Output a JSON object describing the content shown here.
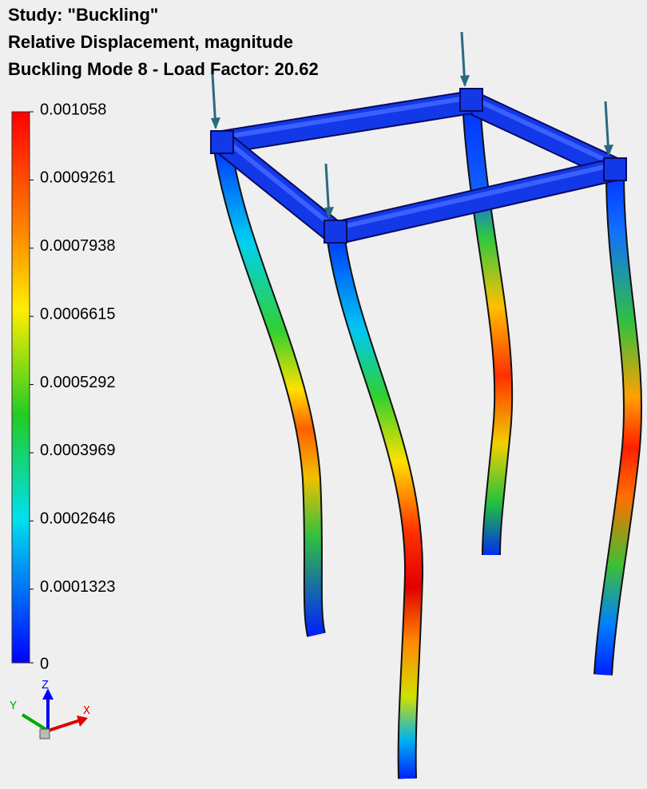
{
  "header": {
    "study": "Study: \"Buckling\"",
    "result": "Relative Displacement, magnitude",
    "mode": "Buckling Mode 8 - Load Factor: 20.62"
  },
  "legend": {
    "labels": [
      "0.001058",
      "0.0009261",
      "0.0007938",
      "0.0006615",
      "0.0005292",
      "0.0003969",
      "0.0002646",
      "0.0001323",
      "0"
    ]
  },
  "triad": {
    "z": "Z",
    "y": "Y",
    "x": "X"
  }
}
